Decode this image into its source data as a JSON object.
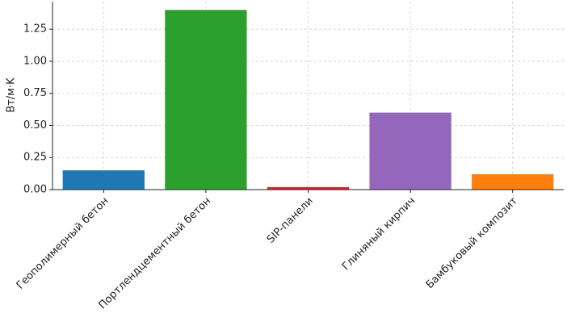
{
  "chart_data": {
    "type": "bar",
    "y_label": "Вт/м·K",
    "categories": [
      "Геополимерный бетон",
      "Портлендцементный бетон",
      "SIP-панели",
      "Глиняный кирпич",
      "Бамбуковый композит"
    ],
    "values": [
      0.15,
      1.4,
      0.02,
      0.6,
      0.12
    ],
    "colors": [
      "#1f77b4",
      "#2ca02c",
      "#d62728",
      "#9467bd",
      "#ff7f0e"
    ],
    "ylim": [
      0,
      1.465
    ],
    "yticks": [
      {
        "value": 0,
        "label": "0.00"
      },
      {
        "value": 0.25,
        "label": "0.25"
      },
      {
        "value": 0.5,
        "label": "0.50"
      },
      {
        "value": 0.75,
        "label": "0.75"
      },
      {
        "value": 1,
        "label": "1.00"
      },
      {
        "value": 1.25,
        "label": "1.25"
      }
    ],
    "grid": true
  }
}
